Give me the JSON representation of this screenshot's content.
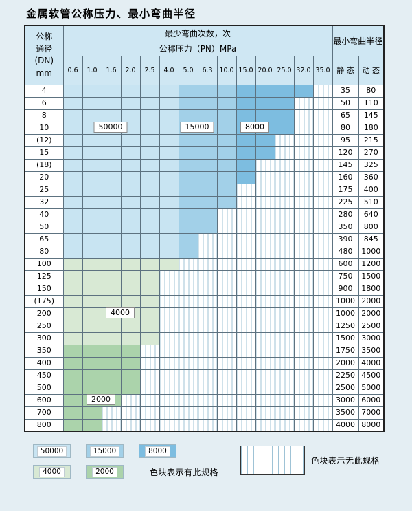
{
  "title": "金属软管公称压力、最小弯曲半径",
  "header": {
    "dn_lines": [
      "公称",
      "通径",
      "(DN)",
      "mm"
    ],
    "bend_count": "最少弯曲次数，次",
    "pressure": "公称压力（PN）MPa",
    "pressure_values": [
      "0.6",
      "1.0",
      "1.6",
      "2.0",
      "2.5",
      "4.0",
      "5.0",
      "6.3",
      "10.0",
      "15.0",
      "20.0",
      "25.0",
      "32.0",
      "35.0"
    ],
    "radius": "最小弯曲半径",
    "static": "静 态",
    "dynamic": "动 态"
  },
  "colors": {
    "page_bg": "#e4eef3",
    "header_bg": "#cfe7f3",
    "hatch_line": "#9fc3d6",
    "c50000": "#c8e4f2",
    "c15000": "#a2d0e8",
    "c8000": "#7dbde0",
    "c4000": "#d8e9d4",
    "c2000": "#abd3ab"
  },
  "bands": {
    "blue": [
      {
        "name": "50000",
        "max_col": 5
      },
      {
        "name": "15000",
        "max_col": 8
      },
      {
        "name": "8000",
        "max_col": 13
      }
    ]
  },
  "rows": [
    {
      "dn": "4",
      "static": "35",
      "dynamic": "80",
      "max_col": 12,
      "zone": "blue"
    },
    {
      "dn": "6",
      "static": "50",
      "dynamic": "110",
      "max_col": 11,
      "zone": "blue"
    },
    {
      "dn": "8",
      "static": "65",
      "dynamic": "145",
      "max_col": 11,
      "zone": "blue"
    },
    {
      "dn": "10",
      "static": "80",
      "dynamic": "180",
      "max_col": 11,
      "zone": "blue"
    },
    {
      "dn": "(12)",
      "static": "95",
      "dynamic": "215",
      "max_col": 10,
      "zone": "blue"
    },
    {
      "dn": "15",
      "static": "120",
      "dynamic": "270",
      "max_col": 10,
      "zone": "blue"
    },
    {
      "dn": "(18)",
      "static": "145",
      "dynamic": "325",
      "max_col": 9,
      "zone": "blue"
    },
    {
      "dn": "20",
      "static": "160",
      "dynamic": "360",
      "max_col": 9,
      "zone": "blue"
    },
    {
      "dn": "25",
      "static": "175",
      "dynamic": "400",
      "max_col": 8,
      "zone": "blue"
    },
    {
      "dn": "32",
      "static": "225",
      "dynamic": "510",
      "max_col": 8,
      "zone": "blue"
    },
    {
      "dn": "40",
      "static": "280",
      "dynamic": "640",
      "max_col": 7,
      "zone": "blue"
    },
    {
      "dn": "50",
      "static": "350",
      "dynamic": "800",
      "max_col": 7,
      "zone": "blue"
    },
    {
      "dn": "65",
      "static": "390",
      "dynamic": "845",
      "max_col": 6,
      "zone": "blue"
    },
    {
      "dn": "80",
      "static": "480",
      "dynamic": "1000",
      "max_col": 6,
      "zone": "blue"
    },
    {
      "dn": "100",
      "static": "600",
      "dynamic": "1200",
      "max_col": 5,
      "zone": "g4000"
    },
    {
      "dn": "125",
      "static": "750",
      "dynamic": "1500",
      "max_col": 4,
      "zone": "g4000"
    },
    {
      "dn": "150",
      "static": "900",
      "dynamic": "1800",
      "max_col": 4,
      "zone": "g4000"
    },
    {
      "dn": "(175)",
      "static": "1000",
      "dynamic": "2000",
      "max_col": 4,
      "zone": "g4000"
    },
    {
      "dn": "200",
      "static": "1000",
      "dynamic": "2000",
      "max_col": 4,
      "zone": "g4000"
    },
    {
      "dn": "250",
      "static": "1250",
      "dynamic": "2500",
      "max_col": 4,
      "zone": "g4000"
    },
    {
      "dn": "300",
      "static": "1500",
      "dynamic": "3000",
      "max_col": 4,
      "zone": "g4000"
    },
    {
      "dn": "350",
      "static": "1750",
      "dynamic": "3500",
      "max_col": 3,
      "zone": "g2000"
    },
    {
      "dn": "400",
      "static": "2000",
      "dynamic": "4000",
      "max_col": 3,
      "zone": "g2000"
    },
    {
      "dn": "450",
      "static": "2250",
      "dynamic": "4500",
      "max_col": 3,
      "zone": "g2000"
    },
    {
      "dn": "500",
      "static": "2500",
      "dynamic": "5000",
      "max_col": 3,
      "zone": "g2000"
    },
    {
      "dn": "600",
      "static": "3000",
      "dynamic": "6000",
      "max_col": 2,
      "zone": "g2000"
    },
    {
      "dn": "700",
      "static": "3500",
      "dynamic": "7000",
      "max_col": 1,
      "zone": "g2000"
    },
    {
      "dn": "800",
      "static": "4000",
      "dynamic": "8000",
      "max_col": 1,
      "zone": "g2000"
    }
  ],
  "overlay_labels": [
    {
      "text": "50000",
      "dn": "10",
      "col": 1,
      "span": 3
    },
    {
      "text": "15000",
      "dn": "10",
      "col": 6,
      "span": 2
    },
    {
      "text": "8000",
      "dn": "10",
      "col": 9,
      "span": 2
    },
    {
      "text": "4000",
      "dn": "200",
      "col": 2,
      "span": 2
    },
    {
      "text": "2000",
      "dn": "600",
      "col": 1,
      "span": 2
    }
  ],
  "legend": {
    "items_row1": [
      {
        "label": "50000",
        "color_key": "c50000"
      },
      {
        "label": "15000",
        "color_key": "c15000"
      },
      {
        "label": "8000",
        "color_key": "c8000"
      }
    ],
    "items_row2": [
      {
        "label": "4000",
        "color_key": "c4000"
      },
      {
        "label": "2000",
        "color_key": "c2000"
      }
    ],
    "has_spec": "色块表示有此规格",
    "no_spec": "色块表示无此规格"
  }
}
